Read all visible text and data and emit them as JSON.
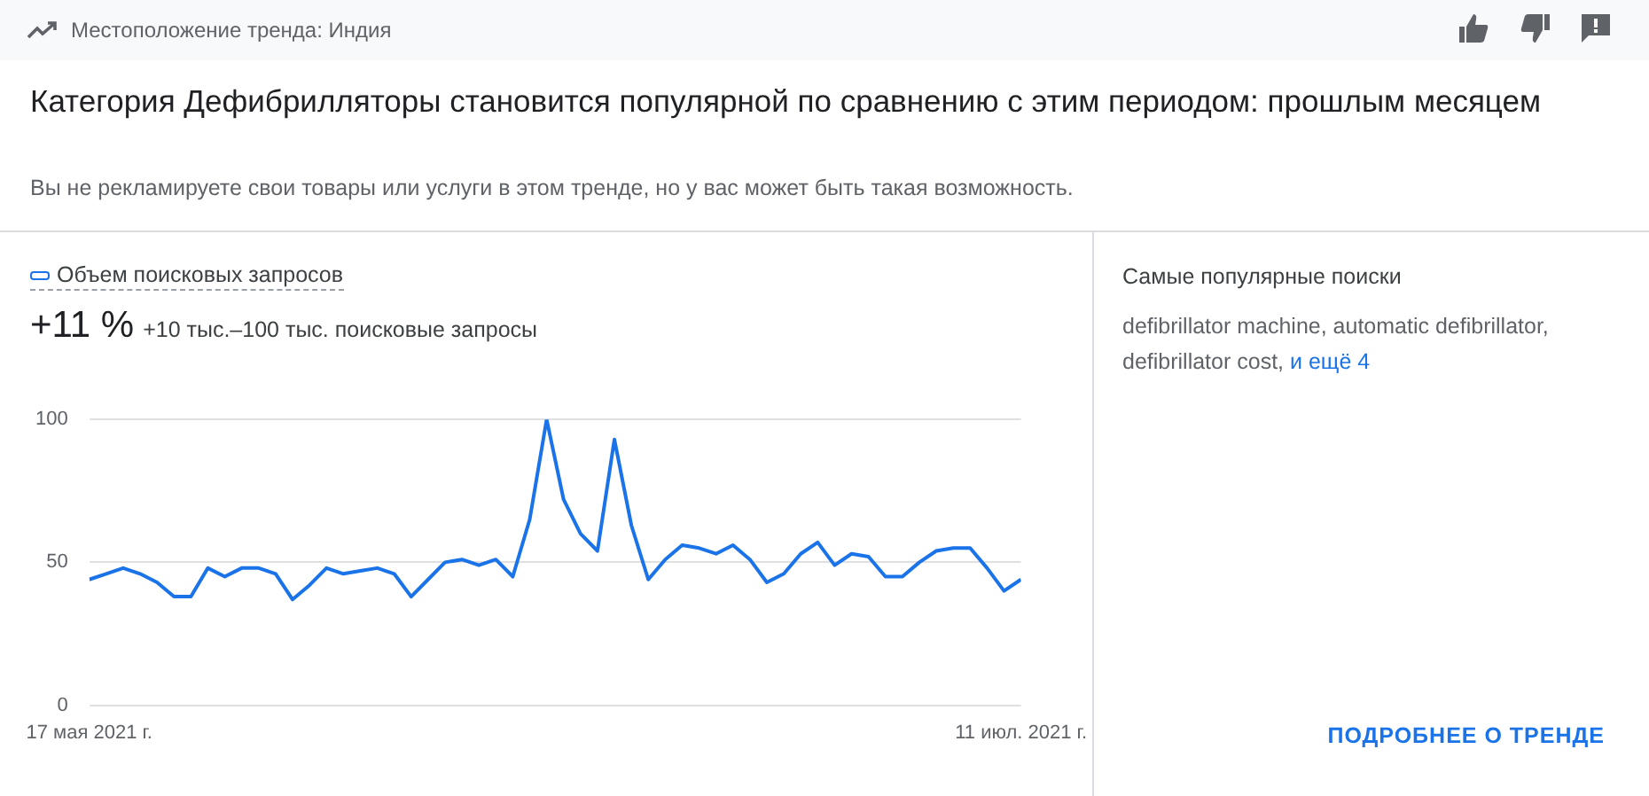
{
  "chart_data": {
    "type": "line",
    "title": "Категория Дефибрилляторы становится популярной по сравнению с этим периодом: прошлым месяцем",
    "subtitle": "Вы не рекламируете свои товары или услуги в этом тренде, но у вас может быть такая возможность.",
    "annotations": [
      "Местоположение тренда: Индия",
      "+11 %",
      "+10 тыс.–100 тыс. поисковые запросы",
      "Самые популярные поиски",
      "defibrillator machine, automatic defibrillator, defibrillator cost,",
      "и ещё 4",
      "ПОДРОБНЕЕ О ТРЕНДЕ"
    ],
    "x": [
      "2021-05-17",
      "2021-05-18",
      "2021-05-19",
      "2021-05-20",
      "2021-05-21",
      "2021-05-22",
      "2021-05-23",
      "2021-05-24",
      "2021-05-25",
      "2021-05-26",
      "2021-05-27",
      "2021-05-28",
      "2021-05-29",
      "2021-05-30",
      "2021-05-31",
      "2021-06-01",
      "2021-06-02",
      "2021-06-03",
      "2021-06-04",
      "2021-06-05",
      "2021-06-06",
      "2021-06-07",
      "2021-06-08",
      "2021-06-09",
      "2021-06-10",
      "2021-06-11",
      "2021-06-12",
      "2021-06-13",
      "2021-06-14",
      "2021-06-15",
      "2021-06-16",
      "2021-06-17",
      "2021-06-18",
      "2021-06-19",
      "2021-06-20",
      "2021-06-21",
      "2021-06-22",
      "2021-06-23",
      "2021-06-24",
      "2021-06-25",
      "2021-06-26",
      "2021-06-27",
      "2021-06-28",
      "2021-06-29",
      "2021-06-30",
      "2021-07-01",
      "2021-07-02",
      "2021-07-03",
      "2021-07-04",
      "2021-07-05",
      "2021-07-06",
      "2021-07-07",
      "2021-07-08",
      "2021-07-09",
      "2021-07-10",
      "2021-07-11"
    ],
    "series": [
      {
        "name": "Объем поисковых запросов",
        "color": "#1a73e8",
        "values": [
          44,
          46,
          48,
          46,
          43,
          38,
          38,
          48,
          45,
          48,
          48,
          46,
          37,
          42,
          48,
          46,
          47,
          48,
          46,
          38,
          44,
          50,
          51,
          49,
          51,
          45,
          65,
          100,
          72,
          60,
          54,
          93,
          63,
          44,
          51,
          56,
          55,
          53,
          56,
          51,
          43,
          46,
          53,
          57,
          49,
          53,
          52,
          45,
          45,
          50,
          54,
          55,
          55,
          48,
          40,
          44
        ]
      }
    ],
    "xlim": [
      "2021-05-17",
      "2021-07-11"
    ],
    "xticks": [
      {
        "value": "2021-05-17",
        "label": "17 мая 2021 г."
      },
      {
        "value": "2021-07-11",
        "label": "11 июл. 2021 г."
      }
    ],
    "ylim": [
      0,
      100
    ],
    "yticks": [
      0,
      50,
      100
    ],
    "grid": "y",
    "legend": "top left",
    "marker": "none",
    "line_style": "solid"
  }
}
